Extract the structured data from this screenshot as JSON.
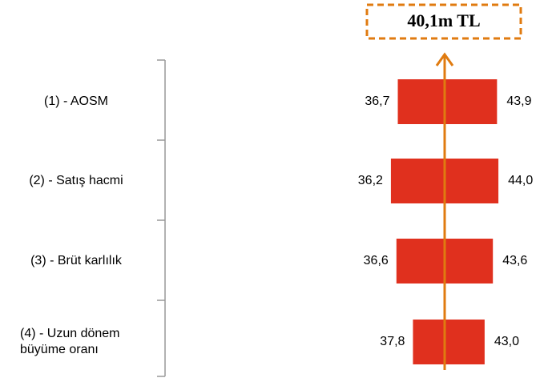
{
  "chart_data": {
    "type": "tornado",
    "categories": [
      "(1) - AOSM",
      "(2) - Satış hacmi",
      "(3) - Brüt karlılık",
      "(4) - Uzun dönem büyüme oranı"
    ],
    "base": 40.1,
    "base_label": "40,1m TL",
    "series": [
      {
        "name": null,
        "color": "#e0301e",
        "values": [
          36.7,
          36.2,
          36.6,
          37.8
        ],
        "value_labels": [
          "36,7",
          "36,2",
          "36,6",
          "37,8"
        ]
      },
      {
        "name": null,
        "color": "#e0301e",
        "values": [
          43.9,
          44.0,
          43.6,
          43.0
        ],
        "value_labels": [
          "43,9",
          "44,0",
          "43,6",
          "43,0"
        ]
      }
    ],
    "base_color": "#e07b10"
  }
}
